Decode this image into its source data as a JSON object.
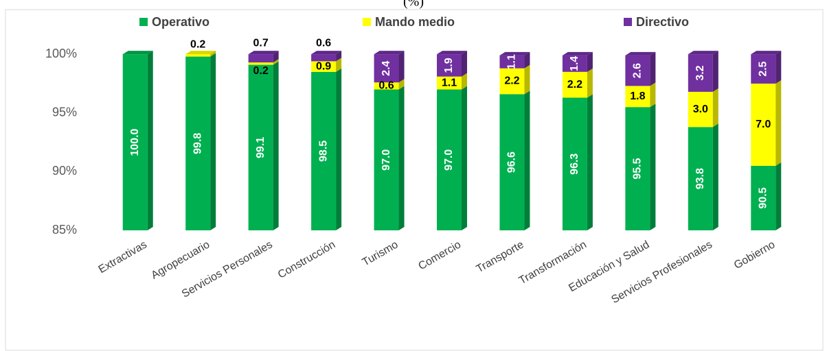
{
  "chart_data": {
    "type": "bar3d_stacked",
    "title": "(%)",
    "categories": [
      "Extractivas",
      "Agropecuario",
      "Servicios Personales",
      "Construcción",
      "Turismo",
      "Comercio",
      "Transporte",
      "Transformación",
      "Educación y Salud",
      "Servicios Profesionales",
      "Gobierno"
    ],
    "series": [
      {
        "name": "Operativo",
        "color": "#00b050",
        "values": [
          100.0,
          99.8,
          99.1,
          98.5,
          97.0,
          97.0,
          96.6,
          96.3,
          95.5,
          93.8,
          90.5
        ],
        "value_labels": [
          "100.0",
          "99.8",
          "99.1",
          "98.5",
          "97.0",
          "97.0",
          "96.6",
          "96.3",
          "95.5",
          "93.8",
          "90.5"
        ]
      },
      {
        "name": "Mando medio",
        "color": "#ffff00",
        "values": [
          0,
          0.2,
          0.2,
          0.9,
          0.6,
          1.1,
          2.2,
          2.2,
          1.8,
          3.0,
          7.0
        ],
        "value_labels": [
          null,
          "0.2",
          "0.2",
          "0.9",
          "0.6",
          "1.1",
          "2.2",
          "2.2",
          "1.8",
          "3.0",
          "7.0"
        ]
      },
      {
        "name": "Directivo",
        "color": "#7030a0",
        "values": [
          0,
          0,
          0.7,
          0.6,
          2.4,
          1.9,
          1.1,
          1.4,
          2.6,
          3.2,
          2.5
        ],
        "value_labels": [
          null,
          null,
          "0.7",
          "0.6",
          "2.4",
          "1.9",
          "1.1",
          "1.4",
          "2.6",
          "3.2",
          "2.5"
        ]
      }
    ],
    "ylim": [
      85,
      101
    ],
    "yticks": [
      {
        "value": 85,
        "label": "85%"
      },
      {
        "value": 90,
        "label": "90%"
      },
      {
        "value": 95,
        "label": "95%"
      },
      {
        "value": 100,
        "label": "100%"
      }
    ],
    "grid": false
  }
}
